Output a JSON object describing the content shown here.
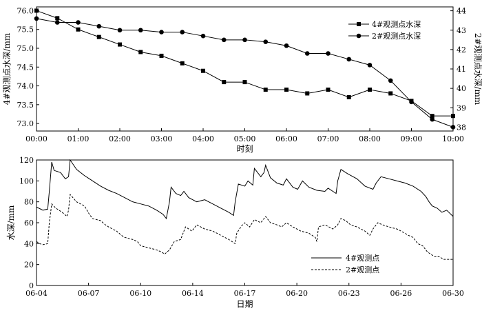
{
  "chart_data": [
    {
      "type": "line",
      "xlabel": "时刻",
      "ylabel_left": "4#观测点水深/mm",
      "ylabel_right": "2#观测点水深/mm",
      "categories": [
        "00:00",
        "00:30",
        "01:00",
        "01:30",
        "02:00",
        "02:30",
        "03:00",
        "03:30",
        "04:00",
        "04:30",
        "05:00",
        "05:30",
        "06:00",
        "06:30",
        "07:00",
        "07:30",
        "08:00",
        "08:30",
        "09:00",
        "09:30",
        "10:00"
      ],
      "x_ticks": [
        "00:00",
        "01:00",
        "02:00",
        "03:00",
        "04:00",
        "05:00",
        "06:00",
        "07:00",
        "08:00",
        "09:00",
        "10:00"
      ],
      "ylim_left": [
        72.8,
        76.1
      ],
      "yticks_left": [
        "73.0",
        "73.5",
        "74.0",
        "74.5",
        "75.0",
        "75.5",
        "76.0"
      ],
      "ylim_right": [
        37.8,
        44.2
      ],
      "yticks_right": [
        "38",
        "39",
        "40",
        "41",
        "42",
        "43",
        "44"
      ],
      "legend_position": "top-right",
      "series": [
        {
          "name": "4#观测点水深",
          "axis": "left",
          "marker": "square",
          "values": [
            76.0,
            75.8,
            75.5,
            75.3,
            75.1,
            74.9,
            74.8,
            74.6,
            74.4,
            74.1,
            74.1,
            73.9,
            73.9,
            73.8,
            73.9,
            73.7,
            73.9,
            73.8,
            73.6,
            73.2,
            73.2
          ]
        },
        {
          "name": "2#观测点水深",
          "axis": "right",
          "marker": "circle",
          "values": [
            43.6,
            43.4,
            43.4,
            43.2,
            43.0,
            43.0,
            42.9,
            42.9,
            42.7,
            42.5,
            42.5,
            42.4,
            42.2,
            41.8,
            41.8,
            41.5,
            41.2,
            40.4,
            39.3,
            38.4,
            38.0
          ]
        }
      ]
    },
    {
      "type": "line",
      "xlabel": "日期",
      "ylabel": "水深/mm",
      "x_ticks": [
        "06-04",
        "06-07",
        "06-10",
        "06-14",
        "06-17",
        "06-20",
        "06-23",
        "06-26",
        "06-30"
      ],
      "xlim": [
        0,
        26
      ],
      "ylim": [
        0,
        120
      ],
      "yticks": [
        "0",
        "20",
        "40",
        "60",
        "80",
        "100",
        "120"
      ],
      "legend_position": "bottom-right",
      "series": [
        {
          "name": "4#观测点",
          "style": "solid",
          "points": [
            [
              0,
              75
            ],
            [
              0.4,
              72
            ],
            [
              0.7,
              73
            ],
            [
              0.8,
              90
            ],
            [
              0.95,
              118
            ],
            [
              1.1,
              110
            ],
            [
              1.5,
              108
            ],
            [
              1.8,
              102
            ],
            [
              2.0,
              104
            ],
            [
              2.1,
              120
            ],
            [
              2.5,
              111
            ],
            [
              3,
              105
            ],
            [
              3.5,
              100
            ],
            [
              4,
              95
            ],
            [
              4.5,
              91
            ],
            [
              5,
              88
            ],
            [
              5.5,
              84
            ],
            [
              6,
              80
            ],
            [
              6.5,
              78
            ],
            [
              7,
              76
            ],
            [
              7.5,
              72
            ],
            [
              7.9,
              68
            ],
            [
              8.1,
              64
            ],
            [
              8.3,
              80
            ],
            [
              8.4,
              94
            ],
            [
              8.7,
              88
            ],
            [
              9,
              86
            ],
            [
              9.2,
              90
            ],
            [
              9.5,
              84
            ],
            [
              10,
              80
            ],
            [
              10.5,
              82
            ],
            [
              11,
              78
            ],
            [
              11.5,
              74
            ],
            [
              12,
              70
            ],
            [
              12.3,
              67
            ],
            [
              12.4,
              80
            ],
            [
              12.6,
              97
            ],
            [
              13,
              95
            ],
            [
              13.2,
              100
            ],
            [
              13.5,
              96
            ],
            [
              13.6,
              112
            ],
            [
              14,
              104
            ],
            [
              14.2,
              108
            ],
            [
              14.3,
              115
            ],
            [
              14.6,
              103
            ],
            [
              15,
              98
            ],
            [
              15.4,
              96
            ],
            [
              15.6,
              102
            ],
            [
              15.8,
              98
            ],
            [
              16,
              94
            ],
            [
              16.3,
              92
            ],
            [
              16.6,
              100
            ],
            [
              17,
              94
            ],
            [
              17.5,
              91
            ],
            [
              18,
              90
            ],
            [
              18.2,
              93
            ],
            [
              18.5,
              90
            ],
            [
              18.7,
              88
            ],
            [
              18.8,
              100
            ],
            [
              19,
              111
            ],
            [
              19.4,
              107
            ],
            [
              20,
              102
            ],
            [
              20.5,
              95
            ],
            [
              21,
              92
            ],
            [
              21.2,
              98
            ],
            [
              21.5,
              104
            ],
            [
              22,
              102
            ],
            [
              22.5,
              100
            ],
            [
              23,
              98
            ],
            [
              23.5,
              95
            ],
            [
              24,
              90
            ],
            [
              24.3,
              85
            ],
            [
              24.5,
              80
            ],
            [
              24.7,
              76
            ],
            [
              25,
              74
            ],
            [
              25.3,
              70
            ],
            [
              25.6,
              72
            ],
            [
              26,
              66
            ]
          ]
        },
        {
          "name": "2#观测点",
          "style": "dashed",
          "points": [
            [
              0,
              42
            ],
            [
              0.2,
              40
            ],
            [
              0.4,
              39
            ],
            [
              0.7,
              40
            ],
            [
              0.8,
              60
            ],
            [
              0.95,
              78
            ],
            [
              1.2,
              74
            ],
            [
              1.6,
              70
            ],
            [
              1.9,
              66
            ],
            [
              2.0,
              72
            ],
            [
              2.1,
              87
            ],
            [
              2.5,
              80
            ],
            [
              3,
              76
            ],
            [
              3.3,
              68
            ],
            [
              3.5,
              64
            ],
            [
              4,
              62
            ],
            [
              4.3,
              58
            ],
            [
              4.5,
              56
            ],
            [
              5,
              52
            ],
            [
              5.3,
              48
            ],
            [
              5.5,
              46
            ],
            [
              6,
              44
            ],
            [
              6.3,
              42
            ],
            [
              6.5,
              38
            ],
            [
              7,
              36
            ],
            [
              7.5,
              34
            ],
            [
              7.8,
              32
            ],
            [
              8,
              30
            ],
            [
              8.3,
              34
            ],
            [
              8.6,
              42
            ],
            [
              9,
              44
            ],
            [
              9.3,
              56
            ],
            [
              9.7,
              52
            ],
            [
              10,
              58
            ],
            [
              10.5,
              54
            ],
            [
              11,
              52
            ],
            [
              11.5,
              48
            ],
            [
              12,
              44
            ],
            [
              12.4,
              40
            ],
            [
              12.5,
              50
            ],
            [
              12.8,
              57
            ],
            [
              13,
              60
            ],
            [
              13.3,
              56
            ],
            [
              13.6,
              63
            ],
            [
              14,
              60
            ],
            [
              14.3,
              66
            ],
            [
              14.6,
              60
            ],
            [
              15,
              58
            ],
            [
              15.3,
              56
            ],
            [
              15.6,
              60
            ],
            [
              16,
              56
            ],
            [
              16.5,
              52
            ],
            [
              17,
              50
            ],
            [
              17.4,
              46
            ],
            [
              17.5,
              42
            ],
            [
              17.6,
              56
            ],
            [
              18,
              58
            ],
            [
              18.5,
              54
            ],
            [
              18.8,
              58
            ],
            [
              19,
              64
            ],
            [
              19.3,
              62
            ],
            [
              19.6,
              58
            ],
            [
              20,
              56
            ],
            [
              20.5,
              52
            ],
            [
              20.8,
              48
            ],
            [
              21,
              54
            ],
            [
              21.3,
              60
            ],
            [
              21.6,
              58
            ],
            [
              22,
              56
            ],
            [
              22.5,
              54
            ],
            [
              23,
              50
            ],
            [
              23.2,
              48
            ],
            [
              23.5,
              46
            ],
            [
              23.8,
              40
            ],
            [
              24.1,
              38
            ],
            [
              24.4,
              32
            ],
            [
              24.8,
              28
            ],
            [
              25.1,
              28
            ],
            [
              25.4,
              25
            ],
            [
              25.7,
              25
            ],
            [
              26,
              25
            ]
          ]
        }
      ]
    }
  ]
}
